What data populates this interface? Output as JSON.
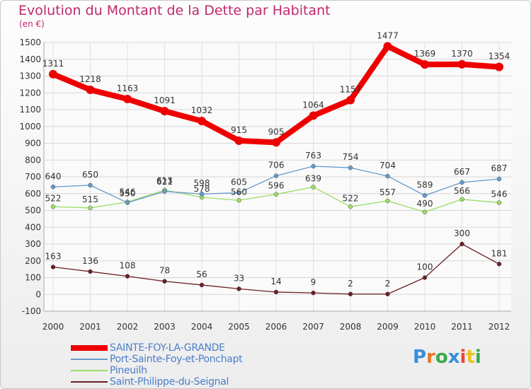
{
  "title": "Evolution du Montant de la Dette par Habitant",
  "unit_label": "(en €)",
  "logo_text": "Proxiti",
  "chart_data": {
    "type": "line",
    "title": "Evolution du Montant de la Dette par Habitant",
    "ylabel": "(en €)",
    "x": [
      "2000",
      "2001",
      "2002",
      "2003",
      "2004",
      "2005",
      "2006",
      "2007",
      "2008",
      "2009",
      "2010",
      "2011",
      "2012"
    ],
    "ylim": [
      -100,
      1500
    ],
    "yticks": [
      -100,
      0,
      100,
      200,
      300,
      400,
      500,
      600,
      700,
      800,
      900,
      1000,
      1100,
      1200,
      1300,
      1400,
      1500
    ],
    "grid": true,
    "legend_position": "bottom-left",
    "series": [
      {
        "name": "SAINTE-FOY-LA-GRANDE",
        "color": "#ee0000",
        "values": [
          1311,
          1218,
          1163,
          1091,
          1032,
          915,
          905,
          1064,
          1157,
          1477,
          1369,
          1370,
          1354
        ]
      },
      {
        "name": "Port-Sainte-Foy-et-Ponchapt",
        "color": "#6699cc",
        "values": [
          640,
          650,
          546,
          613,
          598,
          605,
          706,
          763,
          754,
          704,
          589,
          667,
          687
        ]
      },
      {
        "name": "Pineuilh",
        "color": "#99dd66",
        "values": [
          522,
          515,
          550,
          621,
          578,
          560,
          596,
          639,
          522,
          557,
          490,
          566,
          546
        ]
      },
      {
        "name": "Saint-Philippe-du-Seignal",
        "color": "#6b1f23",
        "values": [
          163,
          136,
          108,
          78,
          56,
          33,
          14,
          9,
          2,
          2,
          100,
          300,
          181
        ]
      }
    ]
  }
}
